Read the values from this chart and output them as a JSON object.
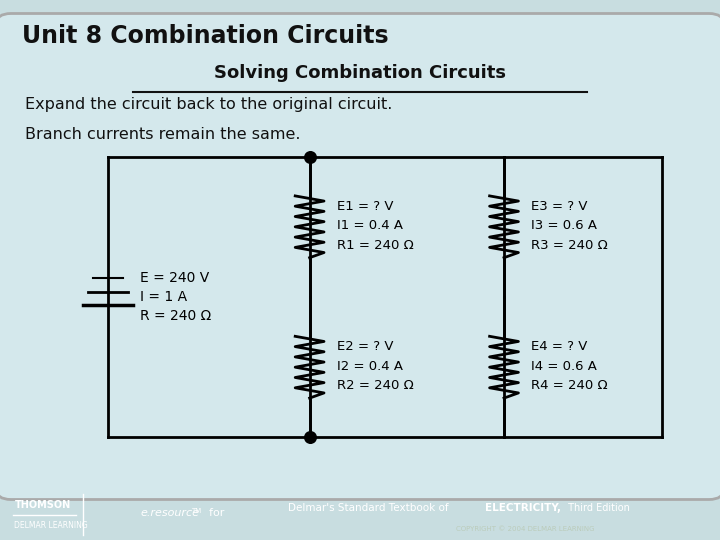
{
  "title": "Unit 8 Combination Circuits",
  "subtitle": "Solving Combination Circuits",
  "line1": "Expand the circuit back to the original circuit.",
  "line2": "Branch currents remain the same.",
  "bg_color": "#c8dde0",
  "inner_bg": "#d4e8ec",
  "text_color": "#000000",
  "battery_label": [
    "E = 240 V",
    "I = 1 A",
    "R = 240 Ω"
  ],
  "r1_label": [
    "E1 = ? V",
    "I1 = 0.4 A",
    "R1 = 240 Ω"
  ],
  "r2_label": [
    "E2 = ? V",
    "I2 = 0.4 A",
    "R2 = 240 Ω"
  ],
  "r3_label": [
    "E3 = ? V",
    "I3 = 0.6 A",
    "R3 = 240 Ω"
  ],
  "r4_label": [
    "E4 = ? V",
    "I4 = 0.6 A",
    "R4 = 240 Ω"
  ],
  "footer_bg": "#3d6e52",
  "footer_text_color": "#ffffff"
}
